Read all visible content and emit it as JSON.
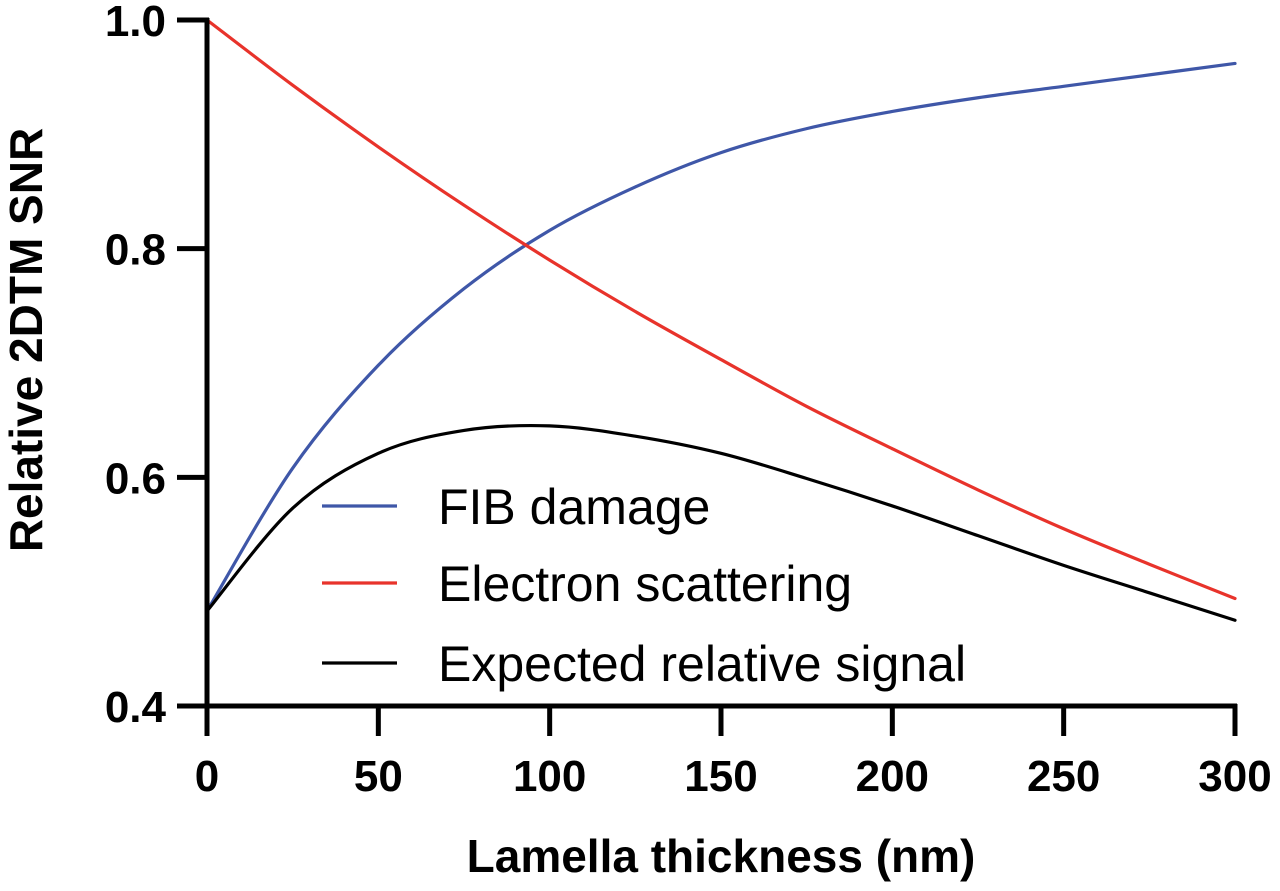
{
  "chart_data": {
    "type": "line",
    "title": "",
    "xlabel": "Lamella thickness (nm)",
    "ylabel": "Relative 2DTM SNR",
    "xlim": [
      0,
      300
    ],
    "ylim": [
      0.4,
      1.0
    ],
    "x_ticks": [
      0,
      50,
      100,
      150,
      200,
      250,
      300
    ],
    "x_tick_labels": [
      "0",
      "50",
      "100",
      "150",
      "200",
      "250",
      "300"
    ],
    "y_ticks": [
      0.4,
      0.6,
      0.8,
      1.0
    ],
    "y_tick_labels": [
      "0.4",
      "0.6",
      "0.8",
      "1.0"
    ],
    "grid": false,
    "legend_position": "center-left",
    "x": [
      0,
      25,
      50,
      75,
      100,
      125,
      150,
      175,
      200,
      225,
      250,
      275,
      300
    ],
    "series": [
      {
        "name": "FIB damage",
        "color": "#3f57a8",
        "values": [
          0.483,
          0.608,
          0.698,
          0.765,
          0.816,
          0.854,
          0.884,
          0.905,
          0.92,
          0.932,
          0.942,
          0.952,
          0.962
        ]
      },
      {
        "name": "Electron scattering",
        "color": "#e8332b",
        "values": [
          1.0,
          0.943,
          0.889,
          0.838,
          0.79,
          0.745,
          0.703,
          0.662,
          0.625,
          0.589,
          0.555,
          0.524,
          0.494
        ]
      },
      {
        "name": "Expected relative signal",
        "color": "#000000",
        "values": [
          0.483,
          0.573,
          0.621,
          0.641,
          0.645,
          0.636,
          0.621,
          0.599,
          0.575,
          0.549,
          0.523,
          0.499,
          0.475
        ]
      }
    ]
  }
}
